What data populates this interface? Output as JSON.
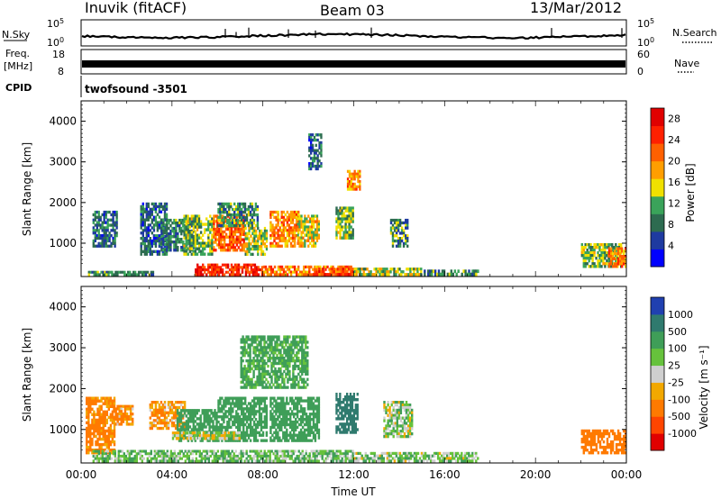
{
  "header": {
    "station": "Inuvik (fitACF)",
    "beam": "Beam 03",
    "date": "13/Mar/2012"
  },
  "strip_panels": {
    "nsky": {
      "label": "N.Sky",
      "ticks": [
        {
          "base": "10",
          "exp": "5"
        },
        {
          "base": "10",
          "exp": "0"
        }
      ]
    },
    "nsearch": {
      "label": "N.Search"
    },
    "freq": {
      "label_line1": "Freq.",
      "label_line2": "[MHz]",
      "ticks": [
        "18",
        "8"
      ]
    },
    "nave": {
      "label": "Nave",
      "ticks": [
        "60",
        "0"
      ]
    },
    "cpid": {
      "label": "CPID",
      "value": "twofsound -3501"
    }
  },
  "colors": {
    "power_scale": [
      "#0000ff",
      "#1e3aa0",
      "#2d6b50",
      "#3aa35a",
      "#f0e000",
      "#ff9e00",
      "#ff6000",
      "#ff2000",
      "#e00000"
    ],
    "velocity_scale": [
      "#2040b0",
      "#2f7a6e",
      "#3f9e58",
      "#66c23c",
      "#cfcfcf",
      "#f2a800",
      "#ff7a00",
      "#ff4500",
      "#e00000"
    ],
    "ground_scatter": "#c8c8c8"
  },
  "chart_data": [
    {
      "type": "heatmap",
      "name": "power",
      "xlabel": "",
      "ylabel": "Slant Range [km]",
      "x_tick_labels": [],
      "y_ticks": [
        1000,
        2000,
        3000,
        4000
      ],
      "ylim": [
        180,
        4500
      ],
      "xlim_hours": [
        0,
        24
      ],
      "colorbar": {
        "label": "Power [dB]",
        "ticks": [
          4,
          8,
          12,
          16,
          20,
          24,
          28
        ],
        "range": [
          0,
          30
        ]
      },
      "regions": [
        {
          "t": [
            0.3,
            3.2
          ],
          "r": [
            200,
            320
          ],
          "v": 10
        },
        {
          "t": [
            0.5,
            1.6
          ],
          "r": [
            900,
            1800
          ],
          "v": 8
        },
        {
          "t": [
            2.6,
            3.8
          ],
          "r": [
            700,
            2000
          ],
          "v": 7
        },
        {
          "t": [
            3.5,
            5.0
          ],
          "r": [
            800,
            1600
          ],
          "v": 9
        },
        {
          "t": [
            4.5,
            5.8
          ],
          "r": [
            700,
            1700
          ],
          "v": 12
        },
        {
          "t": [
            5.8,
            7.2
          ],
          "r": [
            800,
            1700
          ],
          "v": 22
        },
        {
          "t": [
            6.0,
            7.8
          ],
          "r": [
            1400,
            2000
          ],
          "v": 10
        },
        {
          "t": [
            7.2,
            8.2
          ],
          "r": [
            700,
            1400
          ],
          "v": 14
        },
        {
          "t": [
            8.3,
            9.6
          ],
          "r": [
            900,
            1800
          ],
          "v": 20
        },
        {
          "t": [
            9.5,
            10.5
          ],
          "r": [
            900,
            1700
          ],
          "v": 16
        },
        {
          "t": [
            5.0,
            8.0
          ],
          "r": [
            200,
            500
          ],
          "v": 26
        },
        {
          "t": [
            8.0,
            12.0
          ],
          "r": [
            200,
            450
          ],
          "v": 20
        },
        {
          "t": [
            10.2,
            12.3
          ],
          "r": [
            200,
            400
          ],
          "v": 24
        },
        {
          "t": [
            12.0,
            15.0
          ],
          "r": [
            200,
            400
          ],
          "v": 14
        },
        {
          "t": [
            15.0,
            17.5
          ],
          "r": [
            200,
            350
          ],
          "v": 10
        },
        {
          "t": [
            11.2,
            12.0
          ],
          "r": [
            1100,
            1900
          ],
          "v": 12
        },
        {
          "t": [
            11.7,
            12.3
          ],
          "r": [
            2300,
            2800
          ],
          "v": 19
        },
        {
          "t": [
            10.0,
            10.6
          ],
          "r": [
            2800,
            3700
          ],
          "v": 8
        },
        {
          "t": [
            13.6,
            14.4
          ],
          "r": [
            900,
            1600
          ],
          "v": 10
        },
        {
          "t": [
            22.0,
            23.8
          ],
          "r": [
            400,
            1000
          ],
          "v": 12
        },
        {
          "t": [
            23.2,
            24.0
          ],
          "r": [
            400,
            900
          ],
          "v": 20
        }
      ]
    },
    {
      "type": "heatmap",
      "name": "velocity",
      "xlabel": "Time UT",
      "ylabel": "Slant Range [km]",
      "x_tick_labels": [
        "00:00",
        "04:00",
        "08:00",
        "12:00",
        "16:00",
        "20:00",
        "00:00"
      ],
      "x_ticks_hours": [
        0,
        4,
        8,
        12,
        16,
        20,
        24
      ],
      "y_ticks": [
        1000,
        2000,
        3000,
        4000
      ],
      "ylim": [
        180,
        4500
      ],
      "xlim_hours": [
        0,
        24
      ],
      "colorbar": {
        "label": "Velocity [m s⁻¹]",
        "ticks": [
          1000,
          500,
          100,
          25,
          -25,
          -100,
          -500,
          -1000
        ]
      },
      "regions": [
        {
          "t": [
            0.2,
            1.5
          ],
          "r": [
            400,
            1800
          ],
          "v": -150
        },
        {
          "t": [
            1.4,
            2.3
          ],
          "r": [
            1100,
            1600
          ],
          "v": -120
        },
        {
          "t": [
            3.0,
            4.6
          ],
          "r": [
            1000,
            1700
          ],
          "v": -100
        },
        {
          "t": [
            4.2,
            6.0
          ],
          "r": [
            700,
            1500
          ],
          "v": 300
        },
        {
          "t": [
            6.0,
            8.2
          ],
          "r": [
            700,
            1800
          ],
          "v": 350
        },
        {
          "t": [
            8.3,
            10.5
          ],
          "r": [
            700,
            1800
          ],
          "v": 300
        },
        {
          "t": [
            11.2,
            12.2
          ],
          "r": [
            900,
            1900
          ],
          "v": 600
        },
        {
          "t": [
            4.0,
            7.0
          ],
          "r": [
            750,
            950
          ],
          "v": 0
        },
        {
          "t": [
            0.5,
            12.0
          ],
          "r": [
            200,
            500
          ],
          "v": 80
        },
        {
          "t": [
            12.0,
            17.5
          ],
          "r": [
            200,
            450
          ],
          "v": 60
        },
        {
          "t": [
            7.0,
            10.0
          ],
          "r": [
            2000,
            3300
          ],
          "v": 150
        },
        {
          "t": [
            13.3,
            14.6
          ],
          "r": [
            800,
            1700
          ],
          "v": 50
        },
        {
          "t": [
            22.0,
            24.0
          ],
          "r": [
            400,
            1000
          ],
          "v": -200
        }
      ]
    }
  ]
}
